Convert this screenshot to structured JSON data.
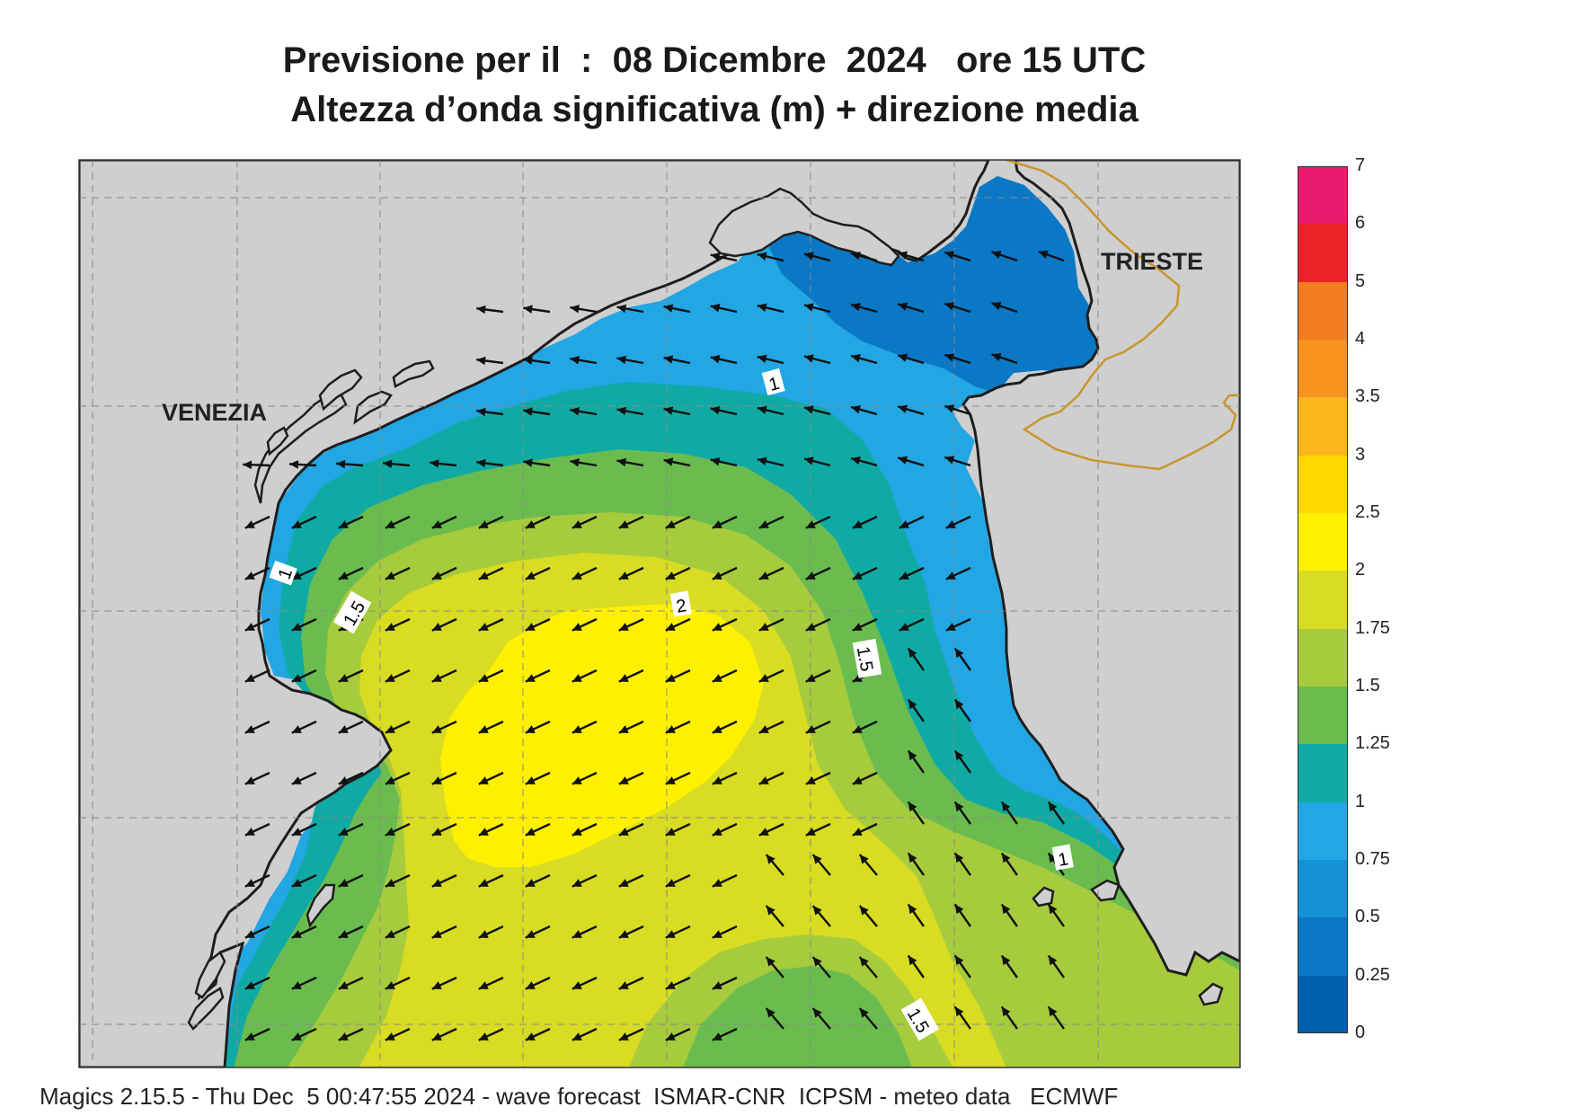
{
  "header": {
    "title_line1": "Previsione per il  :  08 Dicembre  2024   ore 15 UTC",
    "title_line2": "Altezza d’onda significativa (m) + direzione media"
  },
  "map": {
    "cities": [
      "VENEZIA",
      "TRIESTE"
    ],
    "contour_labels": [
      "1",
      "1",
      "1",
      "1.5",
      "1.5",
      "1.5",
      "2"
    ],
    "land_color": "#cfcfcf",
    "coast_color": "#1e1e1e",
    "border_color": "#c8962e"
  },
  "legend": {
    "levels": [
      "0",
      "0.25",
      "0.5",
      "0.75",
      "1",
      "1.25",
      "1.5",
      "1.75",
      "2",
      "2.5",
      "3",
      "3.5",
      "4",
      "5",
      "6",
      "7"
    ],
    "colors": [
      "#0060b0",
      "#0a78c4",
      "#1492d6",
      "#22a6e4",
      "#10aaa4",
      "#6abc4e",
      "#a6cb3c",
      "#d8dc22",
      "#fff000",
      "#ffd800",
      "#fbb71c",
      "#f89320",
      "#f47b20",
      "#ed2228",
      "#ec1a6f"
    ]
  },
  "footer": {
    "text": "Magics 2.15.5 - Thu Dec  5 00:47:55 2024 - wave forecast  ISMAR-CNR  ICPSM - meteo data   ECMWF"
  }
}
